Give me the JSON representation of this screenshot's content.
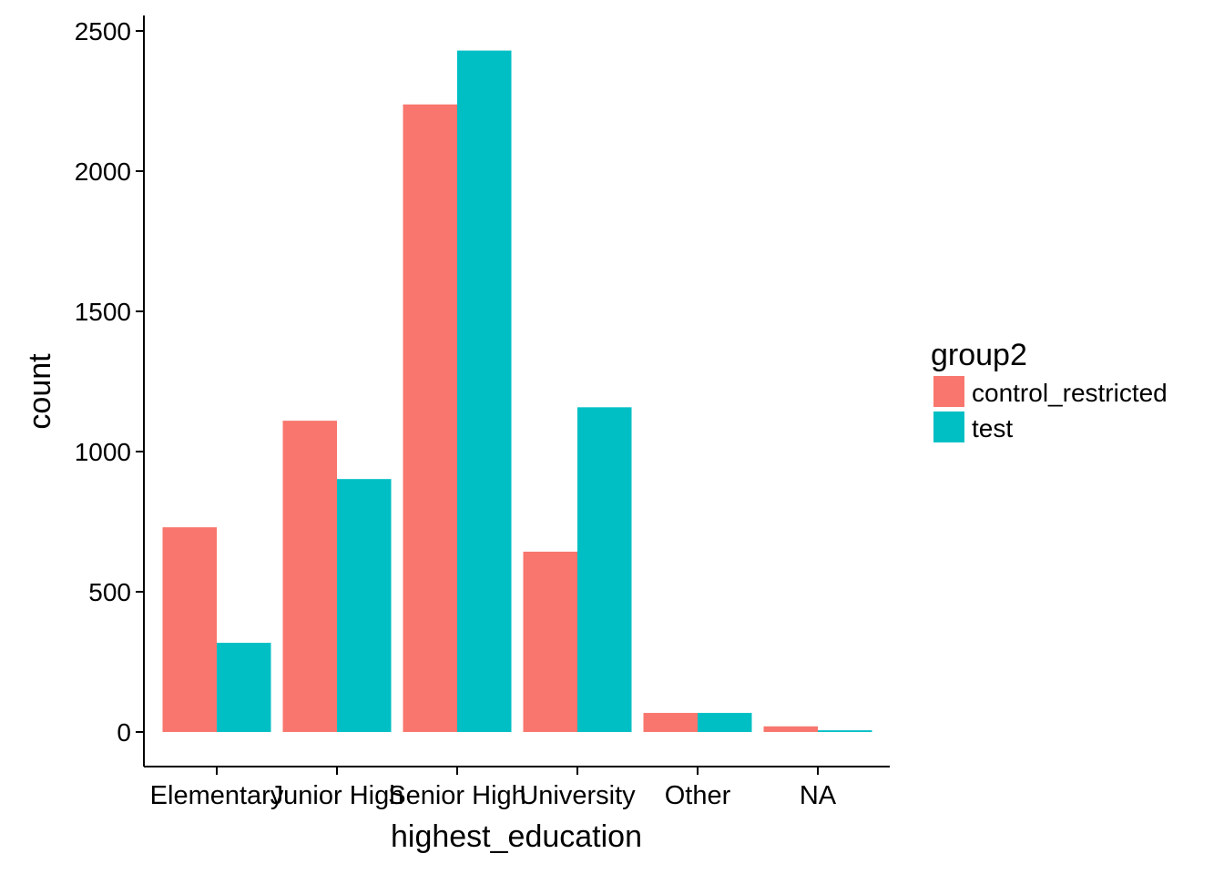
{
  "chart_data": {
    "type": "bar",
    "xlabel": "highest_education",
    "ylabel": "count",
    "categories": [
      "Elementary",
      "Junior High",
      "Senior High",
      "University",
      "Other",
      "NA"
    ],
    "series": [
      {
        "name": "control_restricted",
        "color": "#F8766D",
        "values": [
          730,
          1110,
          2238,
          643,
          68,
          20
        ]
      },
      {
        "name": "test",
        "color": "#00BFC4",
        "values": [
          318,
          902,
          2430,
          1158,
          68,
          6
        ]
      }
    ],
    "ylim": [
      0,
      2500
    ],
    "yticks": [
      0,
      500,
      1000,
      1500,
      2000,
      2500
    ],
    "grid": false,
    "legend": {
      "title": "group2",
      "placement": "right"
    }
  }
}
